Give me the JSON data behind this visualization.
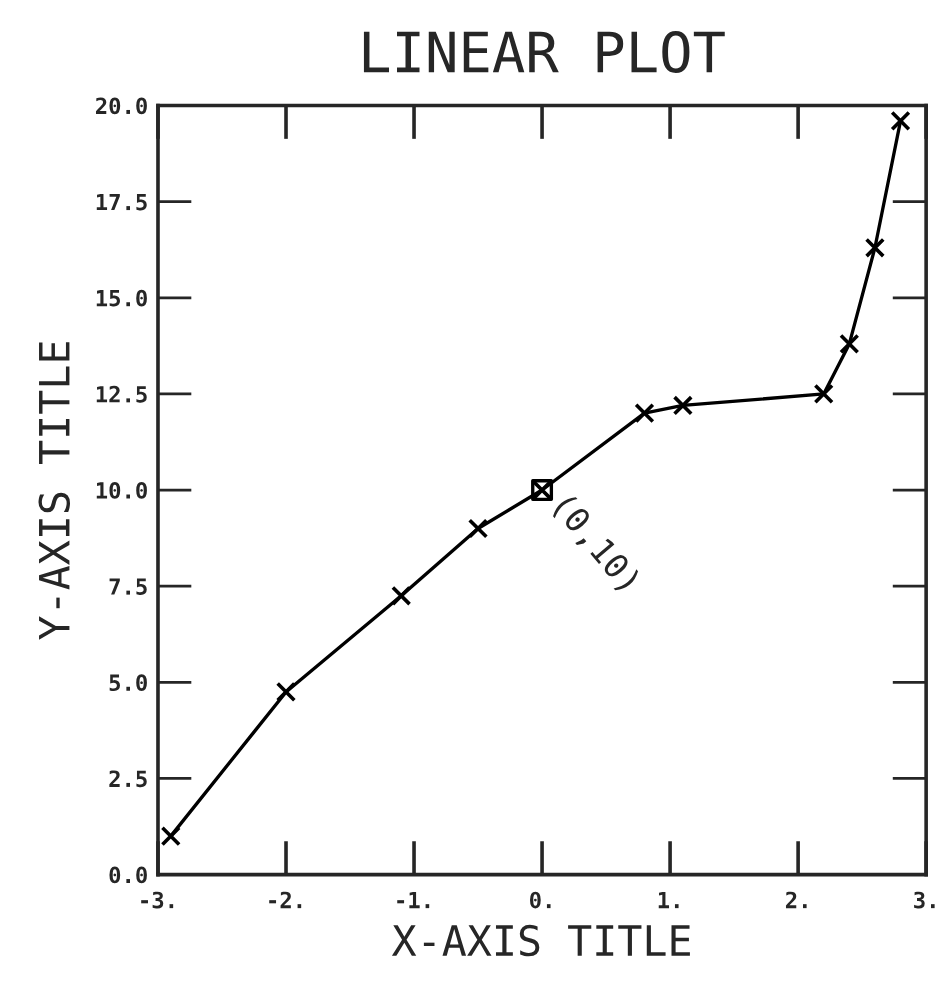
{
  "chart_data": {
    "type": "line",
    "title": "LINEAR PLOT",
    "xlabel": "X-AXIS TITLE",
    "ylabel": "Y-AXIS TITLE",
    "series": [
      {
        "color": "#000000",
        "marker": "cross",
        "x": [
          -2.9,
          -2.0,
          -1.1,
          -0.5,
          0.0,
          0.8,
          1.1,
          2.2,
          2.4,
          2.6,
          2.8
        ],
        "values": [
          1.0,
          4.75,
          7.25,
          9.0,
          10.0,
          12.0,
          12.2,
          12.5,
          13.8,
          16.3,
          19.6
        ]
      },
      {
        "type": "scatter",
        "color": "#000000",
        "marker": "square",
        "x": [
          0.0
        ],
        "values": [
          10.0
        ]
      }
    ],
    "annotations": [
      {
        "text": "(0,10)",
        "x": 0.0,
        "y": 10.0
      }
    ],
    "xlim": [
      -3,
      3
    ],
    "ylim": [
      0,
      20
    ],
    "xticks": [
      {
        "value": -3,
        "label": "-3."
      },
      {
        "value": -2,
        "label": "-2."
      },
      {
        "value": -1,
        "label": "-1."
      },
      {
        "value": 0,
        "label": "0."
      },
      {
        "value": 1,
        "label": "1."
      },
      {
        "value": 2,
        "label": "2."
      },
      {
        "value": 3,
        "label": "3."
      }
    ],
    "yticks": [
      {
        "value": 0,
        "label": "0.0"
      },
      {
        "value": 2.5,
        "label": "2.5"
      },
      {
        "value": 5,
        "label": "5.0"
      },
      {
        "value": 7.5,
        "label": "7.5"
      },
      {
        "value": 10,
        "label": "10.0"
      },
      {
        "value": 12.5,
        "label": "12.5"
      },
      {
        "value": 15,
        "label": "15.0"
      },
      {
        "value": 17.5,
        "label": "17.5"
      },
      {
        "value": 20,
        "label": "20.0"
      }
    ],
    "grid": false,
    "legend": false
  }
}
